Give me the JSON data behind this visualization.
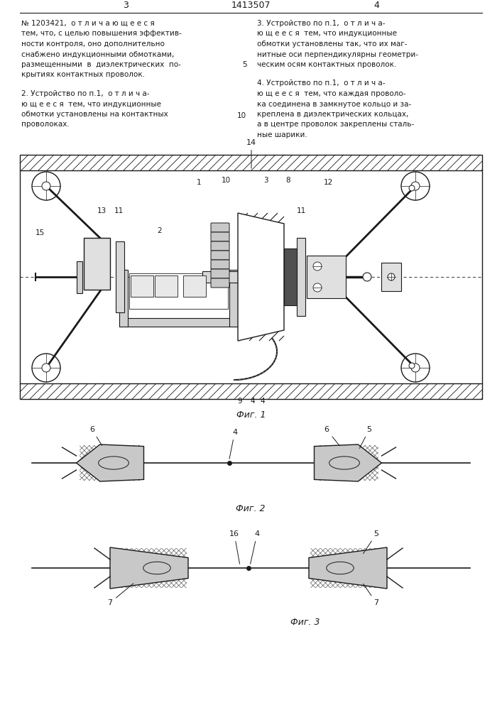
{
  "page_width": 7.07,
  "page_height": 10.0,
  "bg_color": "#ffffff",
  "text_color": "#1a1a1a",
  "line_color": "#1a1a1a",
  "header_l": "3",
  "header_c": "1413507",
  "header_r": "4",
  "left_col": [
    "№ 1203421,  о т л и ч а ю щ е е с я",
    "тем, что, с целью повышения эффектив-",
    "ности контроля, оно дополнительно",
    "снабжено индукционными обмотками,",
    "размещенными  в  диэлектрических  по-",
    "крытиях контактных проволок."
  ],
  "left_col2": [
    "2. Устройство по п.1,  о т л и ч а-",
    "ю щ е е с я  тем, что индукционные",
    "обмотки установлены на контактных",
    "проволоках."
  ],
  "right_col": [
    "3. Устройство по п.1,  о т л и ч а-",
    "ю щ е е с я  тем, что индукционные",
    "обмотки установлены так, что их маг-",
    "нитные оси перпендикулярны геометри-",
    "ческим осям контактных проволок."
  ],
  "right_col2": [
    "4. Устройство по п.1,  о т л и ч а-",
    "ю щ е е с я  тем, что каждая проволо-",
    "ка соединена в замкнутое кольцо и за-",
    "креплена в диэлектрических кольцах,",
    "а в центре проволок закреплены сталь-",
    "ные шарики."
  ]
}
